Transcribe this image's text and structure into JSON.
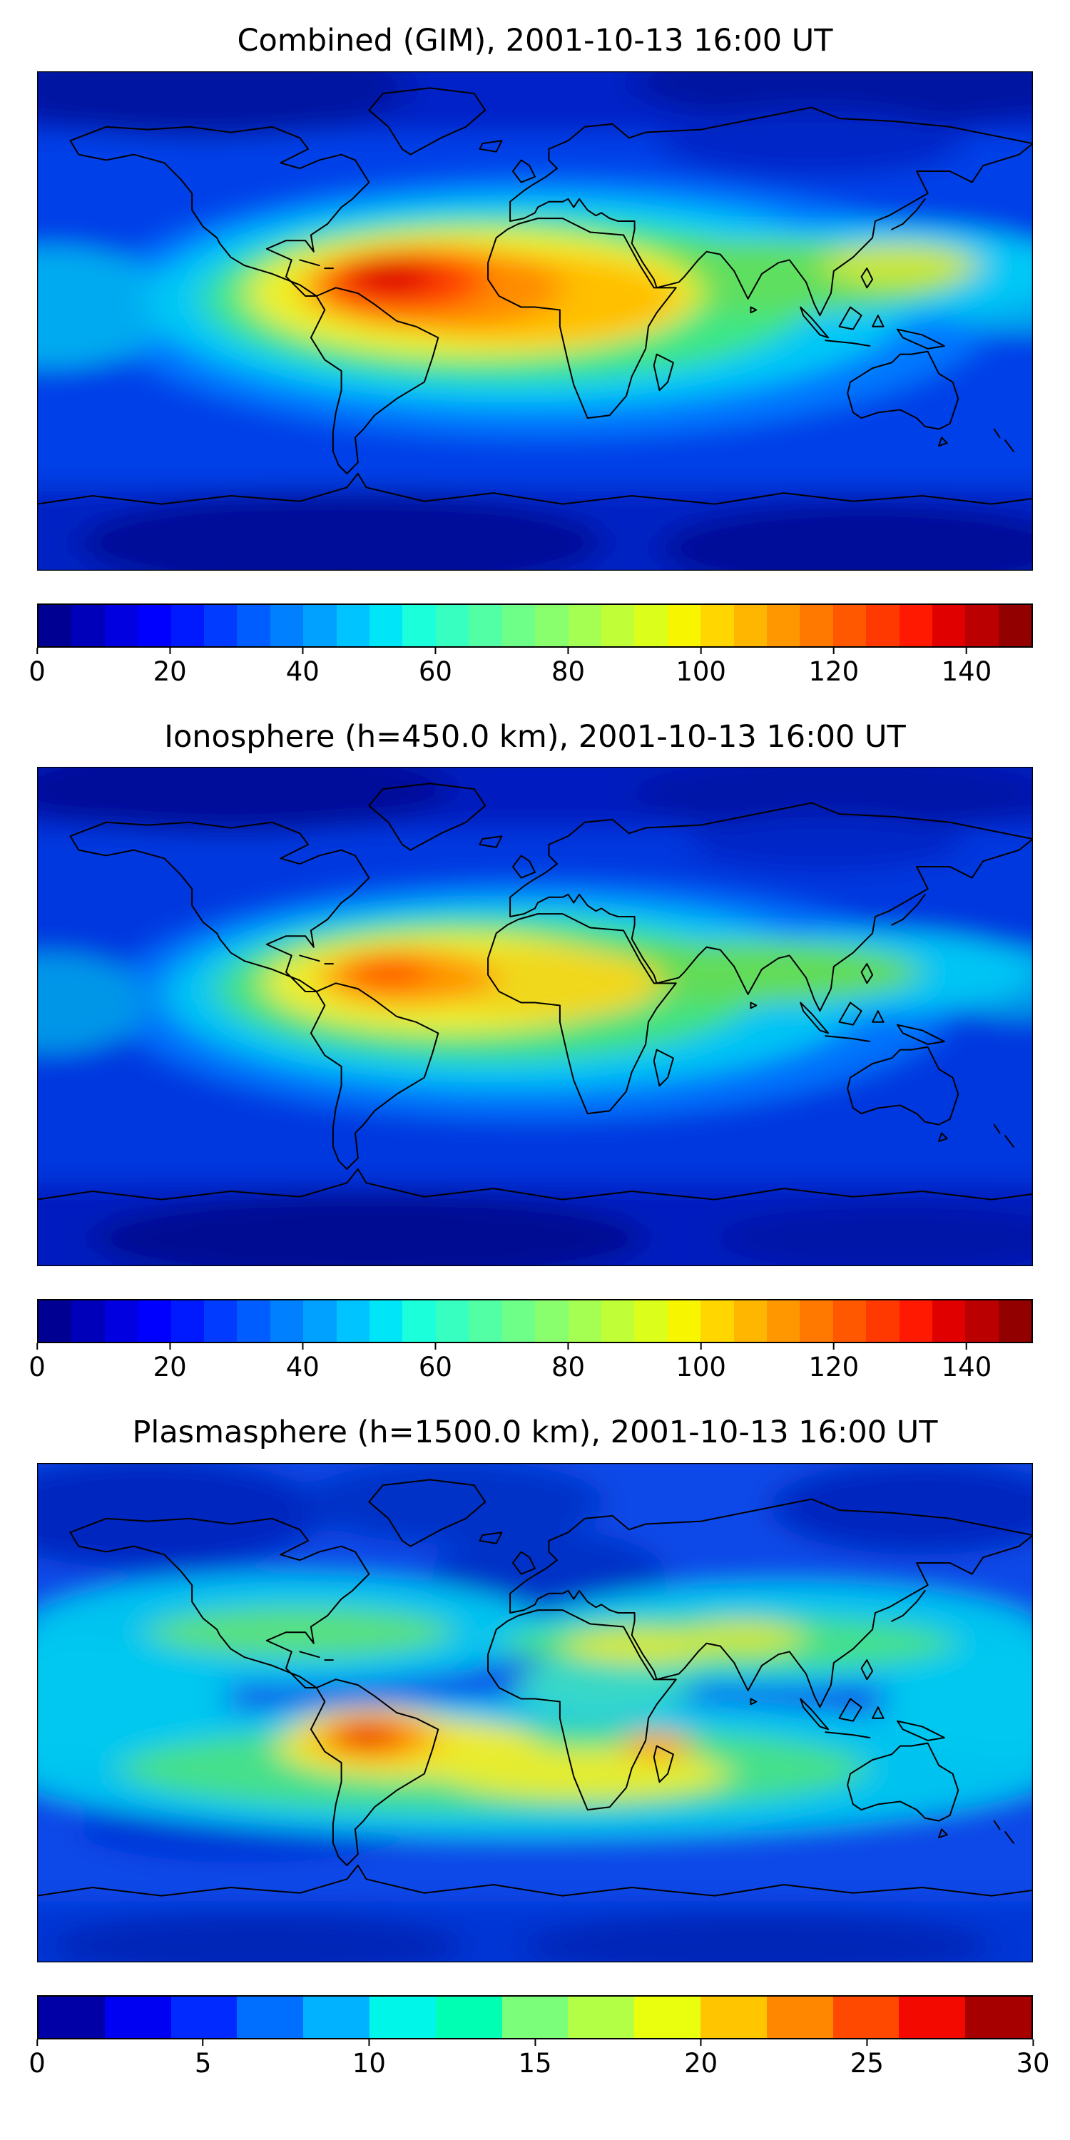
{
  "panels": [
    {
      "title": "Combined (GIM), 2001-10-13 16:00 UT",
      "colorbar": {
        "min": 0,
        "max": 150,
        "levels": 30,
        "tick_values": [
          0,
          20,
          40,
          60,
          80,
          100,
          120,
          140
        ],
        "tick_labels": [
          "0",
          "20",
          "40",
          "60",
          "80",
          "100",
          "120",
          "140"
        ]
      }
    },
    {
      "title": "Ionosphere  (h=450.0 km), 2001-10-13 16:00 UT",
      "colorbar": {
        "min": 0,
        "max": 150,
        "levels": 30,
        "tick_values": [
          0,
          20,
          40,
          60,
          80,
          100,
          120,
          140
        ],
        "tick_labels": [
          "0",
          "20",
          "40",
          "60",
          "80",
          "100",
          "120",
          "140"
        ]
      }
    },
    {
      "title": "Plasmasphere (h=1500.0 km), 2001-10-13 16:00 UT",
      "colorbar": {
        "min": 0,
        "max": 30,
        "levels": 15,
        "tick_values": [
          0,
          5,
          10,
          15,
          20,
          25,
          30
        ],
        "tick_labels": [
          "0",
          "5",
          "10",
          "15",
          "20",
          "25",
          "30"
        ]
      }
    }
  ],
  "colormap": {
    "name": "jet",
    "segments_30": [
      "#000093",
      "#0000BA",
      "#0000E0",
      "#0000FF",
      "#001AFF",
      "#003BFF",
      "#005DFF",
      "#0080FF",
      "#00A1FF",
      "#00C4FF",
      "#00E5F7",
      "#1BFFDB",
      "#37FFC0",
      "#52FFA4",
      "#6EFF89",
      "#89FF6E",
      "#A4FF52",
      "#C0FF37",
      "#DBFF1B",
      "#F7F600",
      "#FFD600",
      "#FFB600",
      "#FF9700",
      "#FF7800",
      "#FF5800",
      "#FF3900",
      "#FF1900",
      "#E00000",
      "#BA0000",
      "#930000"
    ],
    "segments_15": [
      "#0000A6",
      "#0000F3",
      "#002AFF",
      "#006EFF",
      "#00B2FF",
      "#00F6E9",
      "#00FFB2",
      "#7BFF7B",
      "#B2FF45",
      "#E9FF0E",
      "#FFC600",
      "#FF8700",
      "#FF4800",
      "#F30900",
      "#A60000"
    ]
  },
  "chart_data": [
    {
      "type": "heatmap",
      "title": "Combined (GIM), 2001-10-13 16:00 UT",
      "projection": "equirectangular world map with coastlines",
      "x_range_lon": [
        -180,
        180
      ],
      "y_range_lat": [
        -90,
        90
      ],
      "colormap": "jet",
      "value_range": [
        0,
        150
      ],
      "colorbar_ticks": [
        0,
        20,
        40,
        60,
        80,
        100,
        120,
        140
      ],
      "colorbar_orientation": "horizontal",
      "features": [
        {
          "region": "equatorial ionization peak over northern South America / western Atlantic",
          "lon": -55,
          "lat": 12,
          "value_approx": 150
        },
        {
          "region": "high ridge over equatorial Africa",
          "lon": 10,
          "lat": 5,
          "value_approx": 115
        },
        {
          "region": "elevated ridge across southern / southeast Asia",
          "lon": 90,
          "lat": 15,
          "value_approx": 80
        },
        {
          "region": "mid-latitude ocean background",
          "value_approx": 30
        },
        {
          "region": "polar minima",
          "value_approx": 10
        }
      ]
    },
    {
      "type": "heatmap",
      "title": "Ionosphere  (h=450.0 km), 2001-10-13 16:00 UT",
      "projection": "equirectangular world map with coastlines",
      "x_range_lon": [
        -180,
        180
      ],
      "y_range_lat": [
        -90,
        90
      ],
      "colormap": "jet",
      "value_range": [
        0,
        150
      ],
      "colorbar_ticks": [
        0,
        20,
        40,
        60,
        80,
        100,
        120,
        140
      ],
      "colorbar_orientation": "horizontal",
      "features": [
        {
          "region": "peak over northern South America",
          "lon": -58,
          "lat": 12,
          "value_approx": 120
        },
        {
          "region": "yellow ridge over equatorial Africa",
          "lon": 10,
          "lat": 8,
          "value_approx": 95
        },
        {
          "region": "green arm across southern Asia",
          "lon": 90,
          "lat": 15,
          "value_approx": 65
        },
        {
          "region": "mid-latitude ocean background",
          "value_approx": 25
        },
        {
          "region": "polar minima",
          "value_approx": 8
        }
      ]
    },
    {
      "type": "heatmap",
      "title": "Plasmasphere (h=1500.0 km), 2001-10-13 16:00 UT",
      "projection": "equirectangular world map with coastlines",
      "x_range_lon": [
        -180,
        180
      ],
      "y_range_lat": [
        -90,
        90
      ],
      "colormap": "jet",
      "value_range": [
        0,
        30
      ],
      "colorbar_ticks": [
        0,
        5,
        10,
        15,
        20,
        25,
        30
      ],
      "colorbar_orientation": "horizontal",
      "features": [
        {
          "region": "peak over central South America",
          "lon": -60,
          "lat": -10,
          "value_approx": 28
        },
        {
          "region": "secondary maximum near Madagascar",
          "lon": 45,
          "lat": -12,
          "value_approx": 22
        },
        {
          "region": "southern mid-latitude cyan/green band",
          "value_approx": 15
        },
        {
          "region": "northern mid-latitude cyan/green band",
          "value_approx": 12
        },
        {
          "region": "dark blue polar / high-latitude background",
          "value_approx": 4
        }
      ]
    }
  ]
}
